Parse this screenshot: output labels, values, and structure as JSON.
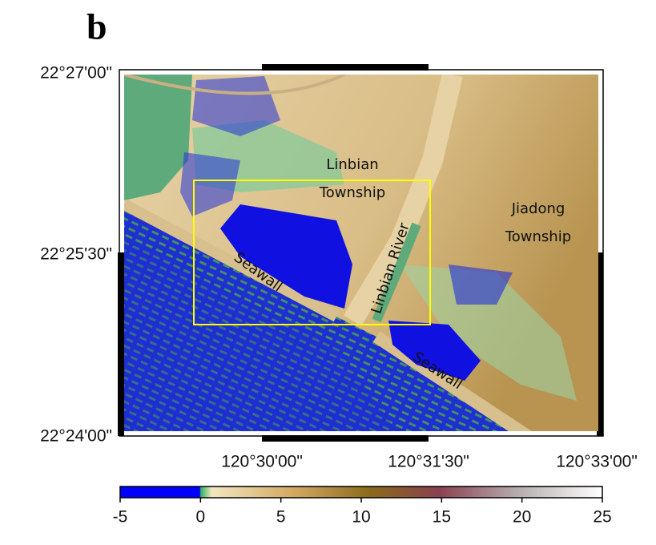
{
  "panel_label": "b",
  "map": {
    "lat_labels": [
      "22°27'00\"",
      "22°25'30\"",
      "22°24'00\""
    ],
    "lon_labels": [
      "120°30'00\"",
      "120°31'30\"",
      "120°33'00\""
    ],
    "place_labels": {
      "linbian_township": [
        "Linbian",
        "Township"
      ],
      "jiadong_township": [
        "Jiadong",
        "Township"
      ],
      "river": "Linbian River",
      "seawall_west": "Seawall",
      "seawall_east": "Seawall"
    }
  },
  "colorbar": {
    "lim": [
      -5,
      25
    ],
    "ticks": [
      -5,
      0,
      5,
      10,
      15,
      20,
      25
    ]
  }
}
